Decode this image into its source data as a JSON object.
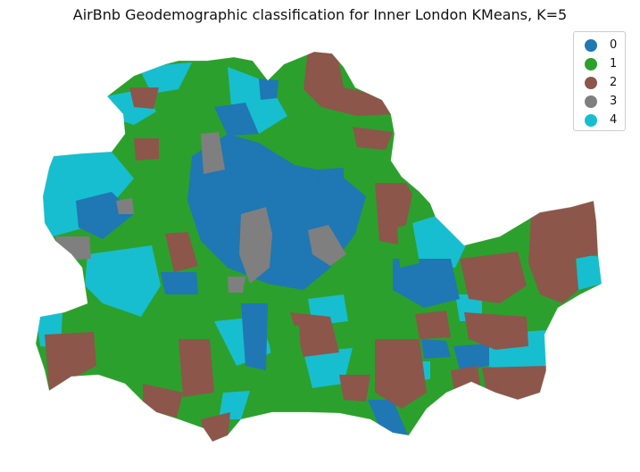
{
  "title": "AirBnb Geodemographic classification for Inner London KMeans, K=5",
  "legend": [
    {
      "label": "0",
      "color": "#1f77b4"
    },
    {
      "label": "1",
      "color": "#2ca02c"
    },
    {
      "label": "2",
      "color": "#8c564b"
    },
    {
      "label": "3",
      "color": "#7f7f7f"
    },
    {
      "label": "4",
      "color": "#17becf"
    }
  ],
  "chart_data": {
    "type": "choropleth",
    "title": "AirBnb Geodemographic classification for Inner London KMeans, K=5",
    "classes": [
      "0",
      "1",
      "2",
      "3",
      "4"
    ],
    "legend_position": "top-right",
    "axes": "off"
  }
}
